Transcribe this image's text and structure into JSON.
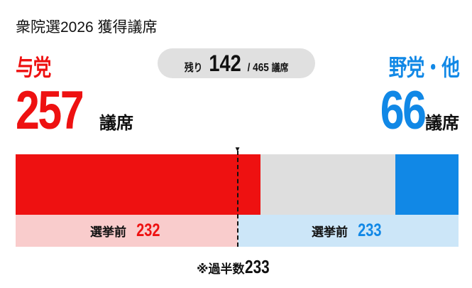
{
  "title": "衆院選2026 獲得議席",
  "total_seats": 465,
  "majority": 233,
  "ruling": {
    "label": "与党",
    "seats": 257,
    "unit": "議席",
    "before_label": "選挙前",
    "before": 232,
    "color": "#ee1111",
    "before_bg": "#f9cccc"
  },
  "opposition": {
    "label": "野党・他",
    "seats": 66,
    "unit": "議席",
    "before_label": "選挙前",
    "before": 233,
    "color": "#1188e6",
    "before_bg": "#cce6f8"
  },
  "remaining": {
    "label": "残り",
    "value": 142,
    "total_text": "/ 465",
    "unit": "議席",
    "color": "#dedede"
  },
  "majority_note": {
    "prefix": "※過半数",
    "value": "233"
  }
}
